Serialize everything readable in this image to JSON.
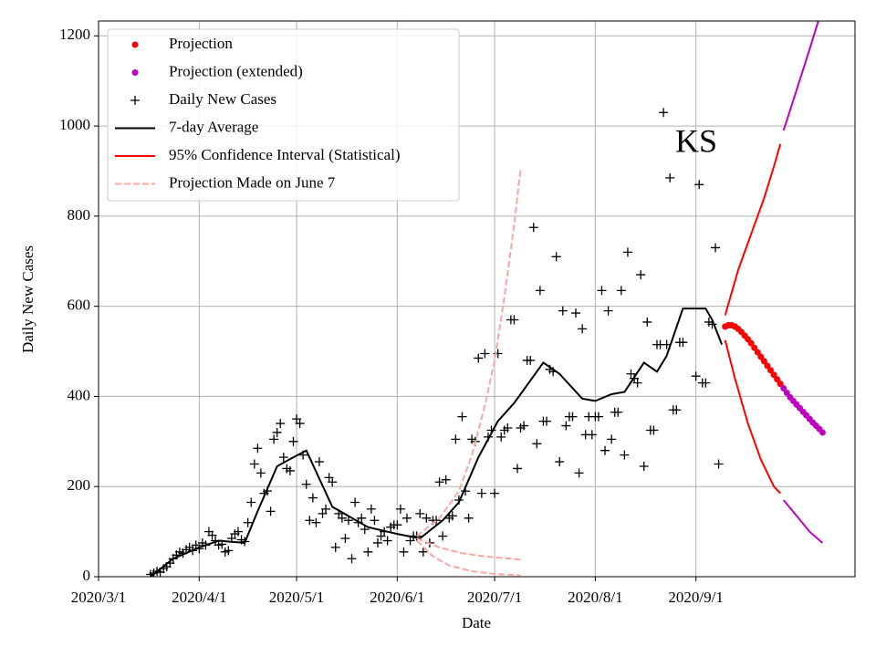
{
  "chart_data": {
    "type": "line",
    "annotation": "KS",
    "xlabel": "Date",
    "ylabel": "Daily New Cases",
    "xlim": [
      "2020-03-01",
      "2020-10-20"
    ],
    "xticks": [
      {
        "value": "2020-03-01",
        "label": "2020/3/1"
      },
      {
        "value": "2020-04-01",
        "label": "2020/4/1"
      },
      {
        "value": "2020-05-01",
        "label": "2020/5/1"
      },
      {
        "value": "2020-06-01",
        "label": "2020/6/1"
      },
      {
        "value": "2020-07-01",
        "label": "2020/7/1"
      },
      {
        "value": "2020-08-01",
        "label": "2020/8/1"
      },
      {
        "value": "2020-09-01",
        "label": "2020/9/1"
      }
    ],
    "ylim": [
      0,
      1233
    ],
    "yticks": [
      0,
      200,
      400,
      600,
      800,
      1000,
      1200
    ],
    "grid": true,
    "legend": "upper left",
    "series": [
      {
        "name": "Projection",
        "style": "dots",
        "color": "#ff0000",
        "x": [
          "2020-09-10",
          "2020-09-11",
          "2020-09-12",
          "2020-09-13",
          "2020-09-14",
          "2020-09-15",
          "2020-09-16",
          "2020-09-17",
          "2020-09-18",
          "2020-09-19",
          "2020-09-20",
          "2020-09-21",
          "2020-09-22",
          "2020-09-23",
          "2020-09-24",
          "2020-09-25",
          "2020-09-26",
          "2020-09-27"
        ],
        "values": [
          555,
          558,
          558,
          555,
          550,
          543,
          535,
          527,
          518,
          508,
          498,
          488,
          478,
          468,
          458,
          448,
          438,
          428
        ]
      },
      {
        "name": "Projection (extended)",
        "style": "dots",
        "color": "#bf00bf",
        "x": [
          "2020-09-28",
          "2020-09-29",
          "2020-09-30",
          "2020-10-01",
          "2020-10-02",
          "2020-10-03",
          "2020-10-04",
          "2020-10-05",
          "2020-10-06",
          "2020-10-07",
          "2020-10-08",
          "2020-10-09",
          "2020-10-10"
        ],
        "values": [
          418,
          408,
          398,
          390,
          382,
          374,
          366,
          358,
          350,
          342,
          335,
          328,
          320
        ]
      },
      {
        "name": "Daily New Cases",
        "style": "plus",
        "color": "#000000",
        "x": [
          "2020-03-17",
          "2020-03-18",
          "2020-03-19",
          "2020-03-20",
          "2020-03-21",
          "2020-03-22",
          "2020-03-23",
          "2020-03-24",
          "2020-03-25",
          "2020-03-26",
          "2020-03-27",
          "2020-03-28",
          "2020-03-29",
          "2020-03-30",
          "2020-03-31",
          "2020-04-01",
          "2020-04-02",
          "2020-04-03",
          "2020-04-04",
          "2020-04-05",
          "2020-04-06",
          "2020-04-07",
          "2020-04-08",
          "2020-04-09",
          "2020-04-10",
          "2020-04-11",
          "2020-04-12",
          "2020-04-13",
          "2020-04-14",
          "2020-04-15",
          "2020-04-16",
          "2020-04-17",
          "2020-04-18",
          "2020-04-19",
          "2020-04-20",
          "2020-04-21",
          "2020-04-22",
          "2020-04-23",
          "2020-04-24",
          "2020-04-25",
          "2020-04-26",
          "2020-04-27",
          "2020-04-28",
          "2020-04-29",
          "2020-04-30",
          "2020-05-01",
          "2020-05-02",
          "2020-05-03",
          "2020-05-04",
          "2020-05-05",
          "2020-05-06",
          "2020-05-07",
          "2020-05-08",
          "2020-05-09",
          "2020-05-10",
          "2020-05-11",
          "2020-05-12",
          "2020-05-13",
          "2020-05-14",
          "2020-05-15",
          "2020-05-16",
          "2020-05-17",
          "2020-05-18",
          "2020-05-19",
          "2020-05-20",
          "2020-05-21",
          "2020-05-22",
          "2020-05-23",
          "2020-05-24",
          "2020-05-25",
          "2020-05-26",
          "2020-05-27",
          "2020-05-28",
          "2020-05-29",
          "2020-05-30",
          "2020-05-31",
          "2020-06-01",
          "2020-06-02",
          "2020-06-03",
          "2020-06-04",
          "2020-06-05",
          "2020-06-06",
          "2020-06-07",
          "2020-06-08",
          "2020-06-09",
          "2020-06-10",
          "2020-06-11",
          "2020-06-12",
          "2020-06-13",
          "2020-06-14",
          "2020-06-15",
          "2020-06-16",
          "2020-06-17",
          "2020-06-18",
          "2020-06-19",
          "2020-06-20",
          "2020-06-21",
          "2020-06-22",
          "2020-06-23",
          "2020-06-24",
          "2020-06-25",
          "2020-06-26",
          "2020-06-27",
          "2020-06-28",
          "2020-06-29",
          "2020-06-30",
          "2020-07-01",
          "2020-07-02",
          "2020-07-03",
          "2020-07-04",
          "2020-07-05",
          "2020-07-06",
          "2020-07-07",
          "2020-07-08",
          "2020-07-09",
          "2020-07-10",
          "2020-07-11",
          "2020-07-12",
          "2020-07-13",
          "2020-07-14",
          "2020-07-15",
          "2020-07-16",
          "2020-07-17",
          "2020-07-18",
          "2020-07-19",
          "2020-07-20",
          "2020-07-21",
          "2020-07-22",
          "2020-07-23",
          "2020-07-24",
          "2020-07-25",
          "2020-07-26",
          "2020-07-27",
          "2020-07-28",
          "2020-07-29",
          "2020-07-30",
          "2020-07-31",
          "2020-08-01",
          "2020-08-02",
          "2020-08-03",
          "2020-08-04",
          "2020-08-05",
          "2020-08-06",
          "2020-08-07",
          "2020-08-08",
          "2020-08-09",
          "2020-08-10",
          "2020-08-11",
          "2020-08-12",
          "2020-08-13",
          "2020-08-14",
          "2020-08-15",
          "2020-08-16",
          "2020-08-17",
          "2020-08-18",
          "2020-08-19",
          "2020-08-20",
          "2020-08-21",
          "2020-08-22",
          "2020-08-23",
          "2020-08-24",
          "2020-08-25",
          "2020-08-26",
          "2020-08-27",
          "2020-08-28",
          "2020-09-01",
          "2020-09-02",
          "2020-09-03",
          "2020-09-04",
          "2020-09-05",
          "2020-09-06",
          "2020-09-07",
          "2020-09-08"
        ],
        "values": [
          5,
          8,
          12,
          10,
          18,
          22,
          30,
          40,
          48,
          55,
          52,
          60,
          65,
          58,
          70,
          62,
          75,
          70,
          100,
          92,
          80,
          70,
          72,
          55,
          58,
          85,
          95,
          100,
          82,
          78,
          120,
          165,
          250,
          285,
          230,
          185,
          190,
          145,
          305,
          320,
          340,
          265,
          240,
          235,
          300,
          350,
          340,
          270,
          205,
          125,
          175,
          120,
          255,
          140,
          150,
          220,
          210,
          65,
          140,
          130,
          85,
          125,
          40,
          165,
          120,
          130,
          105,
          55,
          150,
          125,
          75,
          90,
          100,
          80,
          110,
          115,
          115,
          150,
          55,
          130,
          80,
          90,
          90,
          140,
          55,
          130,
          75,
          125,
          125,
          210,
          90,
          215,
          130,
          135,
          305,
          170,
          355,
          190,
          130,
          305,
          300,
          485,
          185,
          495,
          310,
          325,
          185,
          495,
          310,
          325,
          330,
          570,
          570,
          240,
          330,
          335,
          480,
          480,
          775,
          295,
          635,
          345,
          345,
          460,
          455,
          710,
          255,
          590,
          335,
          355,
          355,
          585,
          230,
          550,
          315,
          355,
          315,
          355,
          355,
          635,
          280,
          590,
          305,
          365,
          365,
          635,
          270,
          720,
          450,
          440,
          430,
          670,
          245,
          565,
          325,
          325,
          515,
          515,
          1030,
          515,
          885,
          370,
          370,
          520,
          520,
          445,
          870,
          430,
          430,
          565,
          560,
          730,
          250
        ]
      },
      {
        "name": "7-day Average",
        "style": "line",
        "color": "#000000",
        "x": [
          "2020-03-17",
          "2020-03-24",
          "2020-04-01",
          "2020-04-07",
          "2020-04-15",
          "2020-04-19",
          "2020-04-25",
          "2020-04-30",
          "2020-05-04",
          "2020-05-12",
          "2020-05-23",
          "2020-06-01",
          "2020-06-08",
          "2020-06-15",
          "2020-06-20",
          "2020-06-26",
          "2020-07-02",
          "2020-07-07",
          "2020-07-16",
          "2020-07-21",
          "2020-07-28",
          "2020-08-01",
          "2020-08-06",
          "2020-08-10",
          "2020-08-16",
          "2020-08-20",
          "2020-08-23",
          "2020-08-28",
          "2020-09-04",
          "2020-09-06",
          "2020-09-09"
        ],
        "values": [
          0,
          40,
          65,
          80,
          75,
          145,
          245,
          265,
          280,
          155,
          110,
          95,
          85,
          125,
          165,
          265,
          345,
          385,
          475,
          450,
          395,
          390,
          405,
          410,
          475,
          455,
          490,
          595,
          595,
          570,
          515
        ]
      },
      {
        "name": "95% Confidence Interval (Statistical)",
        "style": "line",
        "color": "#ff0000",
        "pieces": [
          {
            "color": "#ff0000",
            "x": [
              "2020-09-10",
              "2020-09-14",
              "2020-09-18",
              "2020-09-22",
              "2020-09-25",
              "2020-09-27"
            ],
            "values": [
              580,
              680,
              760,
              840,
              910,
              960
            ]
          },
          {
            "color": "#ff0000",
            "x": [
              "2020-09-10",
              "2020-09-13",
              "2020-09-17",
              "2020-09-21",
              "2020-09-25",
              "2020-09-27"
            ],
            "values": [
              525,
              440,
              340,
              260,
              200,
              185
            ]
          },
          {
            "color": "#bf00bf",
            "x": [
              "2020-09-28",
              "2020-10-02",
              "2020-10-06",
              "2020-10-09"
            ],
            "values": [
              990,
              1080,
              1170,
              1240
            ]
          },
          {
            "color": "#bf00bf",
            "x": [
              "2020-09-28",
              "2020-10-02",
              "2020-10-06",
              "2020-10-10"
            ],
            "values": [
              170,
              135,
              100,
              75
            ]
          }
        ]
      },
      {
        "name": "Projection Made on June 7",
        "style": "dashed",
        "color": "#f7a8a2",
        "pieces": [
          {
            "color": "#f7a8a2",
            "x": [
              "2020-06-07",
              "2020-06-14",
              "2020-06-20",
              "2020-06-24",
              "2020-06-28",
              "2020-07-01",
              "2020-07-04",
              "2020-07-07",
              "2020-07-09"
            ],
            "values": [
              90,
              130,
              190,
              270,
              380,
              480,
              620,
              780,
              905
            ]
          },
          {
            "color": "#f7a8a2",
            "x": [
              "2020-06-07",
              "2020-06-14",
              "2020-06-21",
              "2020-06-28",
              "2020-07-09"
            ],
            "values": [
              85,
              65,
              52,
              45,
              38
            ]
          },
          {
            "color": "#f7a8a2",
            "x": [
              "2020-06-07",
              "2020-06-12",
              "2020-06-17",
              "2020-06-24",
              "2020-07-01",
              "2020-07-09"
            ],
            "values": [
              80,
              45,
              25,
              12,
              6,
              3
            ]
          }
        ]
      }
    ]
  }
}
